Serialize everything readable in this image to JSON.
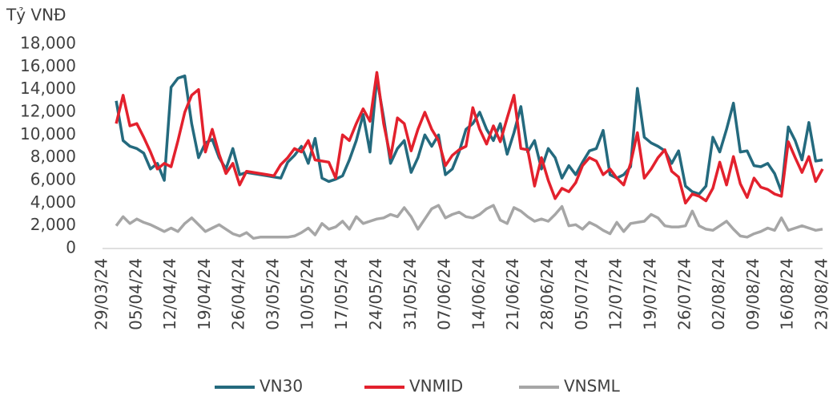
{
  "chart_data": {
    "type": "line",
    "y_axis_label": "Tỷ VNĐ",
    "categories": [
      "29/03/24",
      null,
      null,
      null,
      null,
      "05/04/24",
      null,
      null,
      null,
      null,
      "12/04/24",
      null,
      null,
      null,
      null,
      "19/04/24",
      null,
      null,
      null,
      null,
      "26/04/24",
      null,
      null,
      null,
      null,
      "03/05/24",
      null,
      null,
      null,
      null,
      "10/05/24",
      null,
      null,
      null,
      null,
      "17/05/24",
      null,
      null,
      null,
      null,
      "24/05/24",
      null,
      null,
      null,
      null,
      "31/05/24",
      null,
      null,
      null,
      null,
      "07/06/24",
      null,
      null,
      null,
      null,
      "14/06/24",
      null,
      null,
      null,
      null,
      "21/06/24",
      null,
      null,
      null,
      null,
      "28/06/24",
      null,
      null,
      null,
      null,
      "05/07/24",
      null,
      null,
      null,
      null,
      "12/07/24",
      null,
      null,
      null,
      null,
      "19/07/24",
      null,
      null,
      null,
      null,
      "26/07/24",
      null,
      null,
      null,
      null,
      "02/08/24",
      null,
      null,
      null,
      null,
      "09/08/24",
      null,
      null,
      null,
      null,
      "16/08/24",
      null,
      null,
      null,
      null,
      "23/08/24"
    ],
    "series": [
      {
        "name": "VN30",
        "color": "#246a7e",
        "values": [
          null,
          null,
          13000,
          9500,
          9000,
          8800,
          8400,
          7000,
          7500,
          6000,
          14200,
          15000,
          15200,
          11000,
          8000,
          9300,
          9600,
          8000,
          7000,
          8800,
          6500,
          6700,
          6600,
          6500,
          6400,
          6300,
          6200,
          7600,
          8200,
          9000,
          7500,
          9700,
          6200,
          5900,
          6100,
          6400,
          7800,
          9500,
          11800,
          8500,
          15000,
          11500,
          7500,
          8800,
          9500,
          6700,
          8000,
          10000,
          9000,
          10000,
          6500,
          7000,
          8500,
          10500,
          11000,
          12000,
          10500,
          9500,
          11000,
          8300,
          10200,
          12500,
          8500,
          9500,
          7000,
          8800,
          8000,
          6200,
          7300,
          6500,
          7600,
          8600,
          8800,
          10400,
          6500,
          6200,
          6500,
          7200,
          14100,
          9800,
          9300,
          9000,
          8600,
          7500,
          8600,
          5500,
          5000,
          4800,
          5500,
          9800,
          8500,
          10500,
          12800,
          8500,
          8600,
          7300,
          7200,
          7500,
          6600,
          5000,
          10700,
          9500,
          7800,
          11100,
          7700,
          7800
        ]
      },
      {
        "name": "VNMID",
        "color": "#e3212d",
        "values": [
          null,
          null,
          11000,
          13500,
          10800,
          11000,
          9800,
          8500,
          7000,
          7500,
          7200,
          9500,
          12000,
          13500,
          14000,
          8500,
          10500,
          8300,
          6600,
          7500,
          5600,
          6800,
          6700,
          6600,
          6500,
          6400,
          7400,
          8000,
          8800,
          8500,
          9500,
          7800,
          7700,
          7600,
          6200,
          10000,
          9500,
          11000,
          12300,
          11200,
          15500,
          11000,
          8000,
          11500,
          11000,
          8600,
          10500,
          12000,
          10500,
          9500,
          7300,
          8200,
          8700,
          9000,
          12400,
          10500,
          9200,
          10800,
          9400,
          11500,
          13500,
          8800,
          8700,
          5500,
          8000,
          6000,
          4400,
          5300,
          5000,
          5800,
          7300,
          8000,
          7700,
          6500,
          7000,
          6200,
          5600,
          7500,
          10200,
          6200,
          7000,
          8000,
          8700,
          6800,
          6300,
          4000,
          4800,
          4600,
          4200,
          5300,
          7600,
          5600,
          8100,
          5700,
          4500,
          6200,
          5400,
          5200,
          4800,
          4600,
          9400,
          8000,
          6700,
          8100,
          5900,
          7000
        ]
      },
      {
        "name": "VNSML",
        "color": "#a6a6a6",
        "values": [
          null,
          null,
          2000,
          2800,
          2200,
          2600,
          2300,
          2100,
          1800,
          1500,
          1800,
          1500,
          2200,
          2700,
          2100,
          1500,
          1800,
          2100,
          1700,
          1300,
          1100,
          1400,
          900,
          1000,
          1000,
          1000,
          1000,
          1000,
          1100,
          1400,
          1800,
          1200,
          2200,
          1700,
          1900,
          2400,
          1700,
          2800,
          2200,
          2400,
          2600,
          2700,
          3000,
          2800,
          3600,
          2800,
          1700,
          2600,
          3500,
          3800,
          2700,
          3000,
          3200,
          2800,
          2700,
          3000,
          3500,
          3800,
          2500,
          2200,
          3600,
          3300,
          2800,
          2400,
          2600,
          2400,
          3000,
          3700,
          2000,
          2100,
          1700,
          2300,
          2000,
          1600,
          1300,
          2300,
          1500,
          2200,
          2300,
          2400,
          3000,
          2700,
          2000,
          1900,
          1900,
          2000,
          3300,
          2000,
          1700,
          1600,
          2000,
          2400,
          1700,
          1100,
          1000,
          1300,
          1500,
          1800,
          1600,
          2700,
          1600,
          1800,
          2000,
          1800,
          1600,
          1700
        ]
      }
    ],
    "ylim": [
      0,
      18000
    ],
    "yticks": [
      0,
      {
        "value": 2000,
        "label": "2,000"
      },
      {
        "value": 4000,
        "label": "4,000"
      },
      {
        "value": 6000,
        "label": "6,000"
      },
      {
        "value": 8000,
        "label": "8,000"
      },
      {
        "value": 10000,
        "label": "10,000"
      },
      {
        "value": 12000,
        "label": "12,000"
      },
      {
        "value": 14000,
        "label": "14,000"
      },
      {
        "value": 16000,
        "label": "16,000"
      },
      {
        "value": 18000,
        "label": "18,000"
      }
    ],
    "grid": false,
    "legend": "bottom"
  }
}
